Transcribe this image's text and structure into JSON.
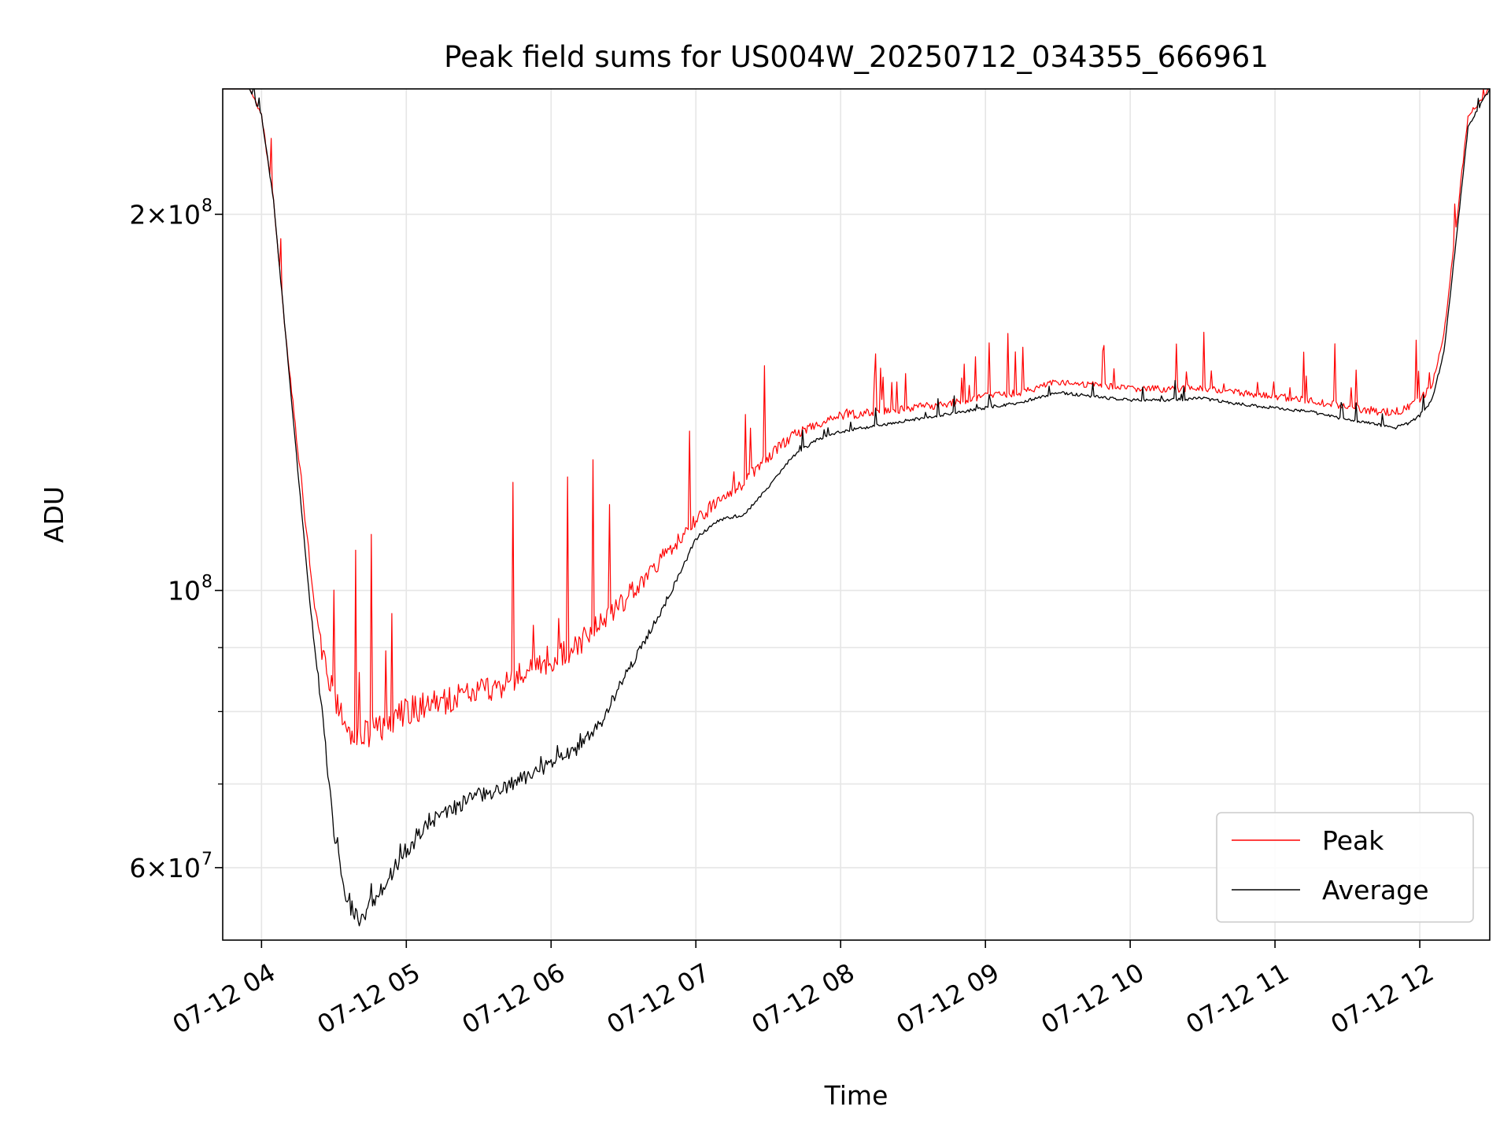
{
  "chart_data": {
    "type": "line",
    "title": "Peak field sums for US004W_20250712_034355_666961",
    "xlabel": "Time",
    "ylabel": "ADU",
    "xlim": [
      "2025-07-12T03:43:55",
      "2025-07-12T12:29:00"
    ],
    "ylim": [
      52500000,
      252000000
    ],
    "y_scale": "log",
    "grid": true,
    "legend_position": "lower-right",
    "x_ticks": [
      {
        "label": "07-12 04",
        "value": "2025-07-12T04:00"
      },
      {
        "label": "07-12 05",
        "value": "2025-07-12T05:00"
      },
      {
        "label": "07-12 06",
        "value": "2025-07-12T06:00"
      },
      {
        "label": "07-12 07",
        "value": "2025-07-12T07:00"
      },
      {
        "label": "07-12 08",
        "value": "2025-07-12T08:00"
      },
      {
        "label": "07-12 09",
        "value": "2025-07-12T09:00"
      },
      {
        "label": "07-12 10",
        "value": "2025-07-12T10:00"
      },
      {
        "label": "07-12 11",
        "value": "2025-07-12T11:00"
      },
      {
        "label": "07-12 12",
        "value": "2025-07-12T12:00"
      }
    ],
    "y_ticks": [
      {
        "mantissa": "6",
        "exponent": "7",
        "value": 60000000
      },
      {
        "mantissa": "",
        "exponent": "8",
        "value": 100000000
      },
      {
        "mantissa": "2",
        "exponent": "8",
        "value": 200000000
      }
    ],
    "y_minor_ticks": [
      70000000,
      80000000,
      90000000
    ],
    "series": [
      {
        "name": "Peak",
        "color": "#ff0000",
        "x": [
          "03:44",
          "03:55",
          "04:00",
          "04:05",
          "04:10",
          "04:15",
          "04:20",
          "04:25",
          "04:30",
          "04:35",
          "04:40",
          "04:45",
          "04:50",
          "04:55",
          "05:00",
          "05:10",
          "05:20",
          "05:30",
          "05:40",
          "05:50",
          "06:00",
          "06:10",
          "06:20",
          "06:30",
          "06:40",
          "06:50",
          "07:00",
          "07:10",
          "07:20",
          "07:30",
          "07:40",
          "07:50",
          "08:00",
          "08:15",
          "08:30",
          "08:45",
          "09:00",
          "09:15",
          "09:30",
          "09:45",
          "10:00",
          "10:15",
          "10:30",
          "10:45",
          "11:00",
          "11:15",
          "11:30",
          "11:45",
          "11:50",
          "11:55",
          "12:00",
          "12:05",
          "12:10",
          "12:15",
          "12:20",
          "12:29"
        ],
        "y": [
          252000000,
          252000000,
          240000000,
          205000000,
          160000000,
          130000000,
          105000000,
          90000000,
          82000000,
          78000000,
          76000000,
          77000000,
          78000000,
          79000000,
          80000000,
          81000000,
          82000000,
          83000000,
          84000000,
          86000000,
          88000000,
          90000000,
          94000000,
          98000000,
          103000000,
          108000000,
          114000000,
          118000000,
          122000000,
          128000000,
          133000000,
          136000000,
          138000000,
          139000000,
          140000000,
          141000000,
          143000000,
          144000000,
          147000000,
          146000000,
          145000000,
          145000000,
          145000000,
          144000000,
          143000000,
          142000000,
          140000000,
          139000000,
          139000000,
          140000000,
          142000000,
          146000000,
          160000000,
          195000000,
          240000000,
          252000000
        ]
      },
      {
        "name": "Average",
        "color": "#000000",
        "x": [
          "03:44",
          "03:55",
          "04:00",
          "04:05",
          "04:10",
          "04:15",
          "04:20",
          "04:25",
          "04:30",
          "04:35",
          "04:40",
          "04:45",
          "04:50",
          "04:55",
          "05:00",
          "05:10",
          "05:20",
          "05:30",
          "05:40",
          "05:50",
          "06:00",
          "06:10",
          "06:20",
          "06:30",
          "06:40",
          "06:50",
          "07:00",
          "07:10",
          "07:20",
          "07:30",
          "07:40",
          "07:50",
          "08:00",
          "08:15",
          "08:30",
          "08:45",
          "09:00",
          "09:15",
          "09:30",
          "09:45",
          "10:00",
          "10:15",
          "10:30",
          "10:45",
          "11:00",
          "11:15",
          "11:30",
          "11:45",
          "11:50",
          "11:55",
          "12:00",
          "12:05",
          "12:10",
          "12:15",
          "12:20",
          "12:29"
        ],
        "y": [
          252000000,
          252000000,
          240000000,
          205000000,
          160000000,
          125000000,
          98000000,
          80000000,
          64000000,
          57000000,
          54500000,
          56000000,
          58000000,
          60000000,
          62000000,
          65500000,
          67000000,
          68500000,
          69500000,
          71000000,
          72500000,
          74500000,
          78000000,
          85000000,
          92000000,
          100000000,
          110000000,
          114000000,
          115000000,
          121000000,
          128000000,
          132000000,
          134000000,
          135500000,
          137000000,
          138500000,
          140000000,
          141500000,
          144000000,
          143000000,
          142000000,
          142000000,
          142500000,
          141000000,
          140000000,
          139000000,
          137000000,
          135500000,
          135000000,
          136000000,
          138000000,
          142000000,
          155000000,
          190000000,
          235000000,
          252000000
        ]
      }
    ]
  }
}
